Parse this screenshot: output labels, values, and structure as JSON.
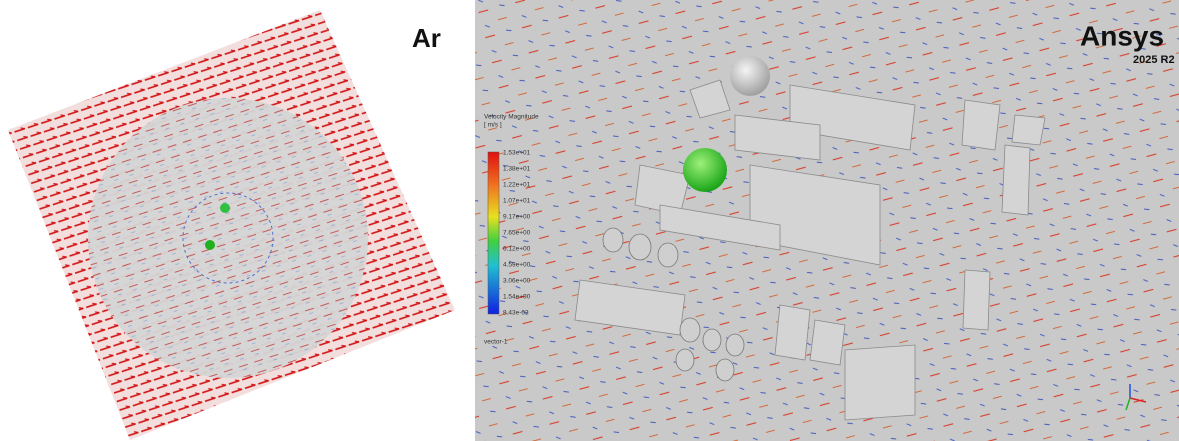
{
  "left_view": {
    "logo": "Ar"
  },
  "right_view": {
    "logo": "Ansys",
    "version": "2025 R2",
    "legend": {
      "title": "Velocity Magnitude",
      "unit": "[ m/s ]",
      "labels": [
        "1.53e+01",
        "1.38e+01",
        "1.22e+01",
        "1.07e+01",
        "9.17e+00",
        "7.65e+00",
        "6.12e+00",
        "4.59e+00",
        "3.06e+00",
        "1.54e+00",
        "8.43e-03"
      ]
    },
    "object_name": "vector-1"
  }
}
